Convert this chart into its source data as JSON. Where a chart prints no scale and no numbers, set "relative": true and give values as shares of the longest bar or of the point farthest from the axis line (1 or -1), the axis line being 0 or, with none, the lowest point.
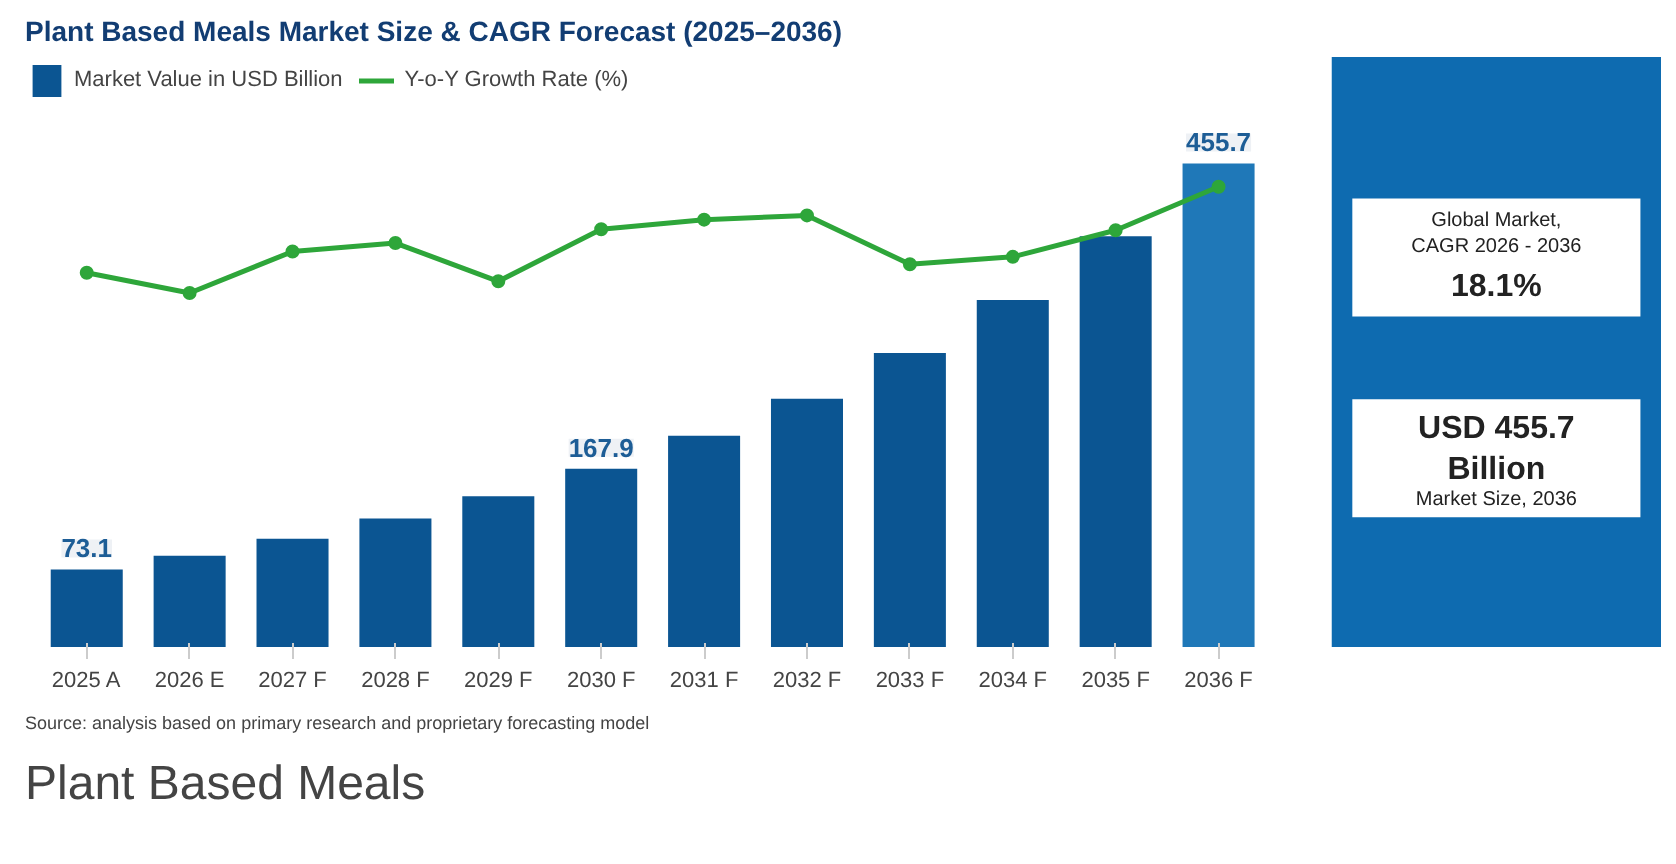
{
  "chart_data": [
    {
      "type": "line",
      "title": "Plant Based Meals Market Size & CAGR Forecast (2025–2036)",
      "relative": true,
      "legend": "top left",
      "marker": "circle",
      "categories": [
        null,
        null,
        null,
        null,
        null,
        null,
        null,
        null,
        null,
        null,
        null,
        null
      ],
      "series": [
        {
          "name": "Y-o-Y Growth Rate (%)",
          "color": "#2ea63a",
          "values": [
            0.19,
            0,
            0.39,
            0.47,
            0.11,
            0.6,
            0.69,
            0.73,
            0.27,
            0.34,
            0.59,
            1
          ]
        }
      ]
    },
    {
      "type": "bar",
      "tick_labels": "x",
      "categories": [
        "2025 A",
        "2026 E",
        "2027 F",
        "2028 F",
        "2029 F",
        "2030 F",
        "2031 F",
        "2032 F",
        "2033 F",
        "2034 F",
        "2035 F",
        "2036 F"
      ],
      "series": [
        {
          "name": "Market Value in USD Billion",
          "colors": [
            "#0b5592",
            "#0b5592",
            "#0b5592",
            "#0b5592",
            "#0b5592",
            "#0b5592",
            "#0b5592",
            "#0b5592",
            "#0b5592",
            "#0b5592",
            "#0b5592",
            "#1f78b8"
          ],
          "values": [
            73.1,
            86,
            102,
            121,
            142,
            167.9,
            199,
            234,
            277,
            327,
            387,
            455.7
          ],
          "value_labels": [
            "73.1",
            null,
            null,
            null,
            null,
            "167.9",
            null,
            null,
            null,
            null,
            null,
            "455.7"
          ]
        }
      ],
      "annotations": [
        "Source: analysis based on primary research and proprietary forecasting model",
        "Global Market,\nCAGR 2026 - 2036",
        "18.1%",
        "USD 455.7\nBillion",
        "Market Size, 2036",
        "Plant Based Meals"
      ]
    }
  ]
}
